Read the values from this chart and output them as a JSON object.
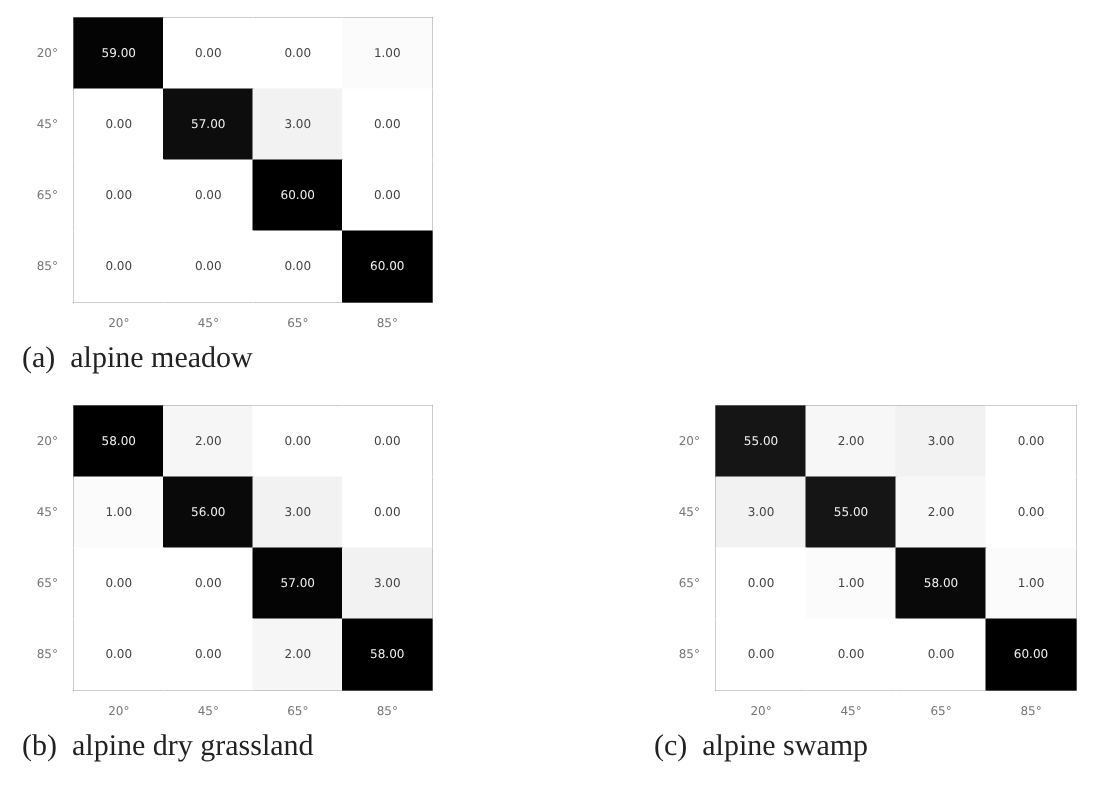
{
  "chart_data": [
    {
      "type": "heatmap",
      "title": "(a)  alpine meadow",
      "categories": [
        "20°",
        "45°",
        "65°",
        "85°"
      ],
      "y_categories": [
        "20°",
        "45°",
        "65°",
        "85°"
      ],
      "cells": [
        [
          59,
          0,
          0,
          1
        ],
        [
          0,
          57,
          3,
          0
        ],
        [
          0,
          0,
          60,
          0
        ],
        [
          0,
          0,
          0,
          60
        ]
      ],
      "cell_labels": [
        [
          "59.00",
          "0.00",
          "0.00",
          "1.00"
        ],
        [
          "0.00",
          "57.00",
          "3.00",
          "0.00"
        ],
        [
          "0.00",
          "0.00",
          "60.00",
          "0.00"
        ],
        [
          "0.00",
          "0.00",
          "0.00",
          "60.00"
        ]
      ]
    },
    {
      "type": "heatmap",
      "title": "(b)  alpine dry grassland",
      "categories": [
        "20°",
        "45°",
        "65°",
        "85°"
      ],
      "y_categories": [
        "20°",
        "45°",
        "65°",
        "85°"
      ],
      "cells": [
        [
          58,
          2,
          0,
          0
        ],
        [
          1,
          56,
          3,
          0
        ],
        [
          0,
          0,
          57,
          3
        ],
        [
          0,
          0,
          2,
          58
        ]
      ],
      "cell_labels": [
        [
          "58.00",
          "2.00",
          "0.00",
          "0.00"
        ],
        [
          "1.00",
          "56.00",
          "3.00",
          "0.00"
        ],
        [
          "0.00",
          "0.00",
          "57.00",
          "3.00"
        ],
        [
          "0.00",
          "0.00",
          "2.00",
          "58.00"
        ]
      ]
    },
    {
      "type": "heatmap",
      "title": "(c)  alpine swamp",
      "categories": [
        "20°",
        "45°",
        "65°",
        "85°"
      ],
      "y_categories": [
        "20°",
        "45°",
        "65°",
        "85°"
      ],
      "cells": [
        [
          55,
          2,
          3,
          0
        ],
        [
          3,
          55,
          2,
          0
        ],
        [
          0,
          1,
          58,
          1
        ],
        [
          0,
          0,
          0,
          60
        ]
      ],
      "cell_labels": [
        [
          "55.00",
          "2.00",
          "3.00",
          "0.00"
        ],
        [
          "3.00",
          "55.00",
          "2.00",
          "0.00"
        ],
        [
          "0.00",
          "1.00",
          "58.00",
          "1.00"
        ],
        [
          "0.00",
          "0.00",
          "0.00",
          "60.00"
        ]
      ]
    }
  ]
}
